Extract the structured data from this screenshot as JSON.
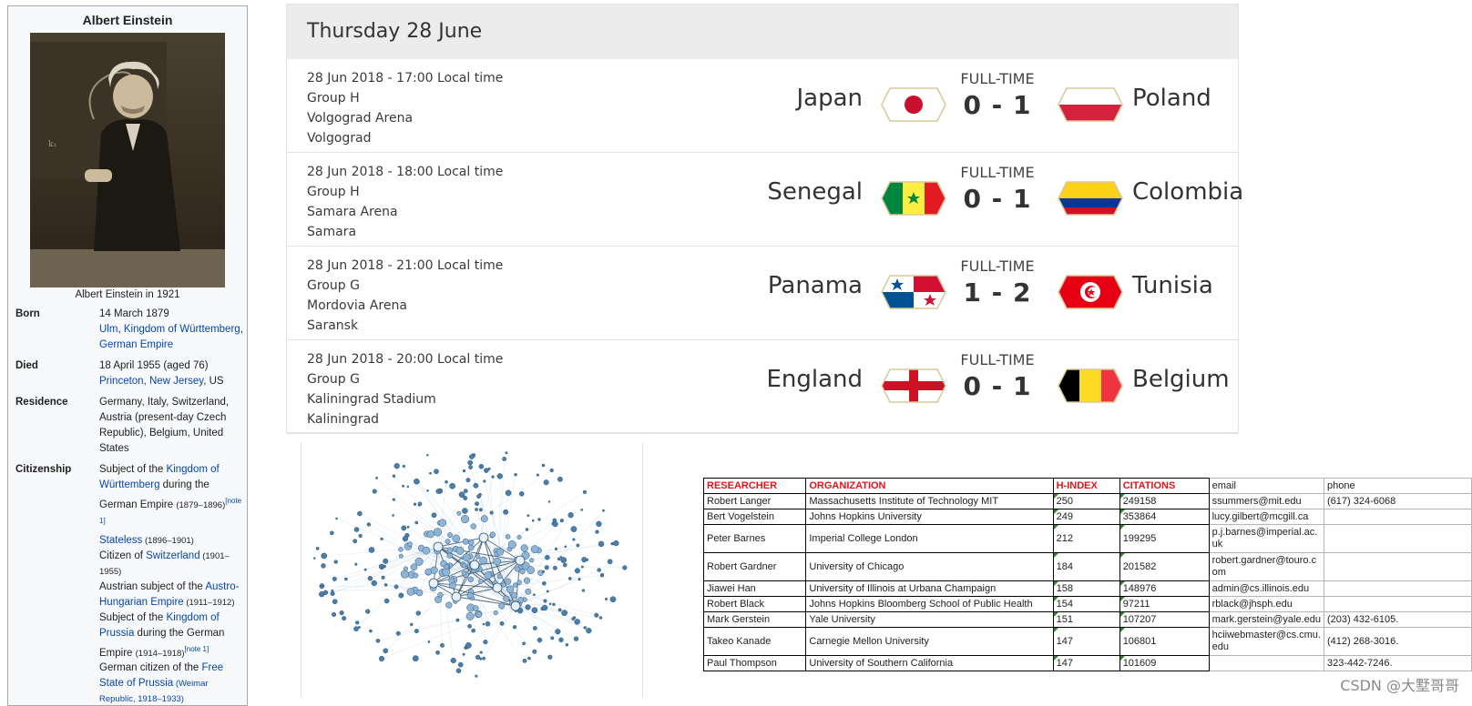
{
  "infobox": {
    "title": "Albert Einstein",
    "caption": "Albert Einstein in 1921",
    "born_label": "Born",
    "born_date": "14 March 1879",
    "born_place": [
      {
        "text": "Ulm",
        "link": true
      },
      {
        "text": ", ",
        "link": false
      },
      {
        "text": "Kingdom of Württemberg",
        "link": true
      },
      {
        "text": ", ",
        "link": false
      },
      {
        "text": "German Empire",
        "link": true
      }
    ],
    "died_label": "Died",
    "died_date": "18 April 1955 (aged 76)",
    "died_place_link": "Princeton, New Jersey",
    "died_place_rest": ", US",
    "residence_label": "Residence",
    "residence_value": "Germany, Italy, Switzerland, Austria (present-day Czech Republic), Belgium, United States",
    "citizenship_label": "Citizenship",
    "citizenship": {
      "c1_a": "Subject of the ",
      "c1_link": "Kingdom of Württemberg",
      "c1_b": " during the German Empire ",
      "c1_years": "(1879–1896)",
      "c1_note": "[note 1]",
      "c2_link": "Stateless",
      "c2_years": " (1896–1901)",
      "c3_a": "Citizen of ",
      "c3_link": "Switzerland",
      "c3_years": " (1901–1955)",
      "c4_a": "Austrian subject of the ",
      "c4_link": "Austro-Hungarian Empire",
      "c4_years": " (1911–1912)",
      "c5_a": "Subject of the ",
      "c5_link": "Kingdom of Prussia",
      "c5_b": " during the German Empire ",
      "c5_years": "(1914–1918)",
      "c5_note": "[note 1]",
      "c6_a": "German citizen of the ",
      "c6_link": "Free State of Prussia",
      "c6_years": " (Weimar Republic, 1918–1933)"
    }
  },
  "matches": {
    "day": "Thursday 28 June",
    "ft_label": "FULL-TIME",
    "games": [
      {
        "datetime": "28 Jun 2018 - 17:00 Local time",
        "group": "Group H",
        "stadium": "Volgograd Arena",
        "city": "Volgograd",
        "home": "Japan",
        "away": "Poland",
        "score": "0 - 1",
        "home_flag": "japan-flag-icon",
        "away_flag": "poland-flag-icon"
      },
      {
        "datetime": "28 Jun 2018 - 18:00 Local time",
        "group": "Group H",
        "stadium": "Samara Arena",
        "city": "Samara",
        "home": "Senegal",
        "away": "Colombia",
        "score": "0 - 1",
        "home_flag": "senegal-flag-icon",
        "away_flag": "colombia-flag-icon"
      },
      {
        "datetime": "28 Jun 2018 - 21:00 Local time",
        "group": "Group G",
        "stadium": "Mordovia Arena",
        "city": "Saransk",
        "home": "Panama",
        "away": "Tunisia",
        "score": "1 - 2",
        "home_flag": "panama-flag-icon",
        "away_flag": "tunisia-flag-icon"
      },
      {
        "datetime": "28 Jun 2018 - 20:00 Local time",
        "group": "Group G",
        "stadium": "Kaliningrad Stadium",
        "city": "Kaliningrad",
        "home": "England",
        "away": "Belgium",
        "score": "0 - 1",
        "home_flag": "england-flag-icon",
        "away_flag": "belgium-flag-icon"
      }
    ]
  },
  "table": {
    "headers": [
      "RESEARCHER",
      "ORGANIZATION",
      "H-INDEX",
      "CITATIONS",
      "email",
      "phone"
    ],
    "rows": [
      [
        "Robert Langer",
        "Massachusetts Institute of Technology MIT",
        "250",
        "249158",
        "ssummers@mit.edu",
        "(617) 324-6068"
      ],
      [
        "Bert Vogelstein",
        "Johns Hopkins University",
        "249",
        "353864",
        "lucy.gilbert@mcgill.ca",
        ""
      ],
      [
        "Peter Barnes",
        "Imperial College London",
        "212",
        "199295",
        "p.j.barnes@imperial.ac.uk",
        ""
      ],
      [
        "Robert Gardner",
        "University of Chicago",
        "184",
        "201582",
        "robert.gardner@touro.com",
        ""
      ],
      [
        "Jiawei Han",
        "University of Illinois at Urbana Champaign",
        "158",
        "148976",
        "admin@cs.illinois.edu",
        ""
      ],
      [
        "Robert Black",
        "Johns Hopkins Bloomberg School of Public Health",
        "154",
        "97211",
        "rblack@jhsph.edu",
        ""
      ],
      [
        "Mark Gerstein",
        "Yale University",
        "151",
        "107207",
        "mark.gerstein@yale.edu",
        "(203) 432-6105."
      ],
      [
        "Takeo Kanade",
        "Carnegie Mellon University",
        "147",
        "106801",
        "hciiwebmaster@cs.cmu.edu",
        "(412) 268-3016."
      ],
      [
        "Paul Thompson",
        "University of Southern California",
        "147",
        "101609",
        "",
        "323-442-7246."
      ]
    ]
  },
  "watermark": "CSDN @大墅哥哥"
}
